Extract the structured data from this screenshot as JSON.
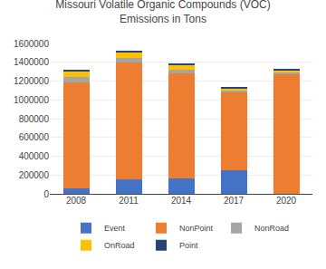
{
  "chart_data": {
    "type": "bar",
    "stacked": true,
    "title": "Missouri Volatile Organic Compounds (VOC)\nEmissions in Tons",
    "categories": [
      "2008",
      "2011",
      "2014",
      "2017",
      "2020"
    ],
    "series": [
      {
        "name": "Event",
        "color": "#4472c4",
        "values": [
          60000,
          150000,
          160000,
          250000,
          3000
        ]
      },
      {
        "name": "NonPoint",
        "color": "#ed7d31",
        "values": [
          1130000,
          1250000,
          1125000,
          830000,
          1270000
        ]
      },
      {
        "name": "NonRoad",
        "color": "#a5a5a5",
        "values": [
          55000,
          50000,
          40000,
          20000,
          22000
        ]
      },
      {
        "name": "OnRoad",
        "color": "#ffc000",
        "values": [
          60000,
          60000,
          50000,
          25000,
          22000
        ]
      },
      {
        "name": "Point",
        "color": "#264478",
        "values": [
          15000,
          8000,
          5000,
          6000,
          8000
        ]
      }
    ],
    "ylim": [
      0,
      1600000
    ],
    "yticks": [
      0,
      200000,
      400000,
      600000,
      800000,
      1000000,
      1200000,
      1400000,
      1600000
    ],
    "grid": true,
    "legend": "bottom"
  }
}
